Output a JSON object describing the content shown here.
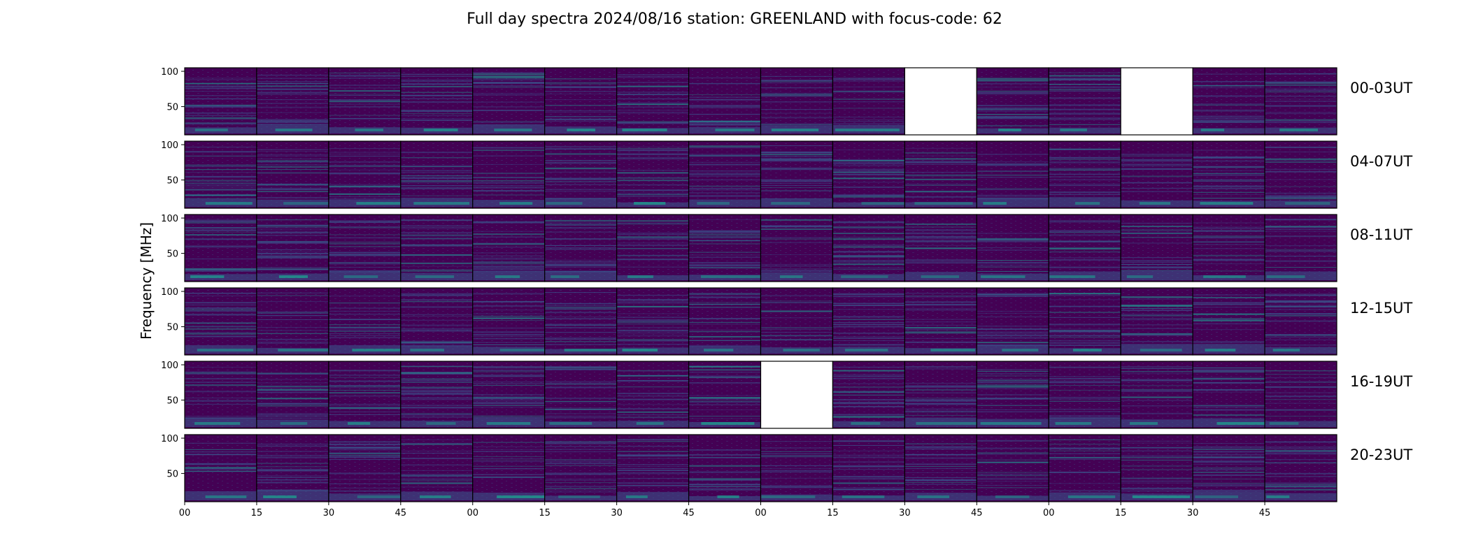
{
  "chart_data": {
    "type": "heatmap",
    "title": "Full day spectra 2024/08/16 station: GREENLAND with focus-code: 62",
    "ylabel": "Frequency [MHz]",
    "xlabel": "",
    "colormap": "viridis",
    "ylim": [
      10,
      105
    ],
    "y_ticks": [
      100,
      50
    ],
    "x_ticks": [
      "00",
      "15",
      "30",
      "45",
      "00",
      "15",
      "30",
      "45",
      "00",
      "15",
      "30",
      "45",
      "00",
      "15",
      "30",
      "45"
    ],
    "rows": [
      {
        "label": "00-03UT",
        "missing_panels": [
          10,
          13
        ]
      },
      {
        "label": "04-07UT",
        "missing_panels": []
      },
      {
        "label": "08-11UT",
        "missing_panels": []
      },
      {
        "label": "12-15UT",
        "missing_panels": []
      },
      {
        "label": "16-19UT",
        "missing_panels": [
          8
        ]
      },
      {
        "label": "20-23UT",
        "missing_panels": []
      }
    ],
    "panels_per_row": 16
  },
  "colors": {
    "background": "#440154",
    "band_mid": "#3b528b",
    "band_bright": "#21918c",
    "band_peak": "#5ec962"
  }
}
